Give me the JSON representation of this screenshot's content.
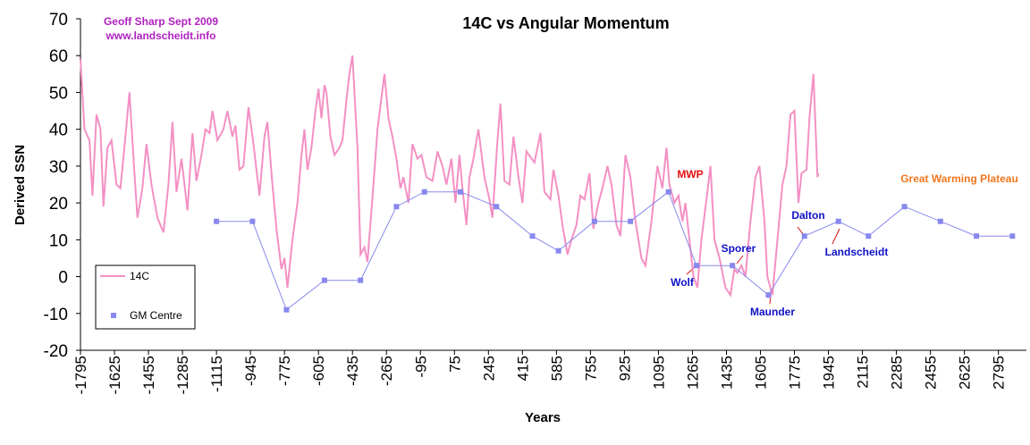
{
  "chart_data": {
    "type": "line",
    "title": "14C vs Angular Momentum",
    "x_label": "Years",
    "y_label": "Derived SSN",
    "xlim": [
      -1795,
      2935
    ],
    "ylim": [
      -20,
      70
    ],
    "xticks": [
      -1795,
      -1625,
      -1455,
      -1285,
      -1115,
      -945,
      -775,
      -605,
      -435,
      -265,
      -95,
      75,
      245,
      415,
      585,
      755,
      925,
      1095,
      1265,
      1435,
      1605,
      1775,
      1945,
      2115,
      2285,
      2455,
      2625,
      2795
    ],
    "yticks": [
      -20,
      -10,
      0,
      10,
      20,
      30,
      40,
      50,
      60,
      70
    ],
    "grid": false,
    "legend": "lower left",
    "series": [
      {
        "name": "14C",
        "color": "#f490c4",
        "marker": false,
        "x": [
          -1795,
          -1775,
          -1750,
          -1735,
          -1715,
          -1695,
          -1680,
          -1660,
          -1640,
          -1615,
          -1595,
          -1570,
          -1550,
          -1525,
          -1510,
          -1485,
          -1465,
          -1440,
          -1410,
          -1380,
          -1355,
          -1335,
          -1315,
          -1290,
          -1260,
          -1235,
          -1215,
          -1190,
          -1170,
          -1150,
          -1135,
          -1110,
          -1080,
          -1060,
          -1035,
          -1020,
          -1000,
          -980,
          -955,
          -930,
          -900,
          -875,
          -860,
          -835,
          -815,
          -790,
          -775,
          -760,
          -735,
          -710,
          -690,
          -675,
          -660,
          -640,
          -620,
          -605,
          -590,
          -575,
          -565,
          -545,
          -525,
          -500,
          -485,
          -465,
          -450,
          -435,
          -410,
          -395,
          -375,
          -360,
          -330,
          -310,
          -275,
          -255,
          -235,
          -215,
          -195,
          -180,
          -155,
          -135,
          -110,
          -90,
          -65,
          -35,
          -10,
          15,
          35,
          60,
          80,
          100,
          115,
          135,
          150,
          170,
          195,
          225,
          250,
          265,
          290,
          305,
          325,
          350,
          370,
          395,
          415,
          435,
          475,
          505,
          525,
          555,
          570,
          595,
          615,
          640,
          660,
          685,
          705,
          725,
          750,
          770,
          795,
          815,
          840,
          860,
          885,
          905,
          930,
          955,
          980,
          1010,
          1030,
          1060,
          1090,
          1115,
          1135,
          1150,
          1175,
          1195,
          1215,
          1230,
          1250,
          1270,
          1290,
          1310,
          1340,
          1355,
          1375,
          1400,
          1430,
          1455,
          1475,
          1490,
          1510,
          1530,
          1555,
          1580,
          1600,
          1625,
          1640,
          1665,
          1685,
          1715,
          1735,
          1755,
          1775,
          1795,
          1810,
          1835,
          1850,
          1870,
          1890,
          1895
        ],
        "values": [
          59,
          40,
          37,
          22,
          44,
          40,
          19,
          35,
          37,
          25,
          24,
          38,
          50,
          28,
          16,
          24,
          36,
          25,
          16,
          12,
          25,
          42,
          23,
          32,
          18,
          39,
          26,
          33,
          40,
          39,
          45,
          37,
          40,
          45,
          38,
          41,
          29,
          30,
          46,
          36,
          22,
          38,
          42,
          25,
          13,
          2,
          5,
          -3,
          10,
          20,
          33,
          40,
          29,
          35,
          45,
          51,
          43,
          52,
          50,
          38,
          33,
          35,
          37,
          48,
          55,
          60,
          35,
          6,
          8,
          4,
          25,
          40,
          55,
          43,
          38,
          32,
          24,
          27,
          20,
          36,
          32,
          33,
          27,
          26,
          34,
          30,
          25,
          32,
          20,
          33,
          24,
          14,
          27,
          32,
          40,
          27,
          21,
          16,
          37,
          47,
          26,
          25,
          38,
          27,
          20,
          34,
          31,
          39,
          23,
          21,
          29,
          22,
          14,
          6,
          10,
          14,
          22,
          21,
          28,
          13,
          20,
          24,
          30,
          25,
          14,
          11,
          33,
          27,
          15,
          5,
          3,
          15,
          30,
          24,
          35,
          25,
          20,
          22,
          15,
          20,
          10,
          0,
          -3,
          10,
          23,
          30,
          10,
          5,
          -3,
          -5,
          2,
          1,
          3,
          0,
          15,
          27,
          30,
          15,
          0,
          -5,
          7,
          25,
          30,
          44,
          45,
          20,
          28,
          29,
          43,
          55,
          27,
          28
        ]
      },
      {
        "name": "GM Centre",
        "color": "#8888ee",
        "marker": true,
        "x": [
          -1115,
          -935,
          -765,
          -575,
          -395,
          -215,
          -75,
          105,
          285,
          465,
          595,
          775,
          955,
          1145,
          1285,
          1465,
          1645,
          1825,
          1995,
          2145,
          2325,
          2505,
          2685,
          2865
        ],
        "values": [
          15,
          15,
          -9,
          -1,
          -1,
          19,
          23,
          23,
          19,
          11,
          7,
          15,
          15,
          23,
          3,
          3,
          -5,
          11,
          15,
          11,
          19,
          15,
          11,
          11
        ]
      }
    ],
    "annotations": [
      {
        "text": "Geoff Sharp Sept 2009",
        "color": "#b020c0"
      },
      {
        "text": "www.landscheidt.info",
        "color": "#b020c0"
      },
      {
        "text": "MWP",
        "color": "#e01010"
      },
      {
        "text": "Great Warming Plateau",
        "color": "#f07820"
      },
      {
        "text": "Dalton",
        "color": "#1010c8"
      },
      {
        "text": "Sporer",
        "color": "#1010c8"
      },
      {
        "text": "Wolf",
        "color": "#1010c8"
      },
      {
        "text": "Maunder",
        "color": "#1010c8"
      },
      {
        "text": "Landscheidt",
        "color": "#1010c8"
      }
    ]
  }
}
